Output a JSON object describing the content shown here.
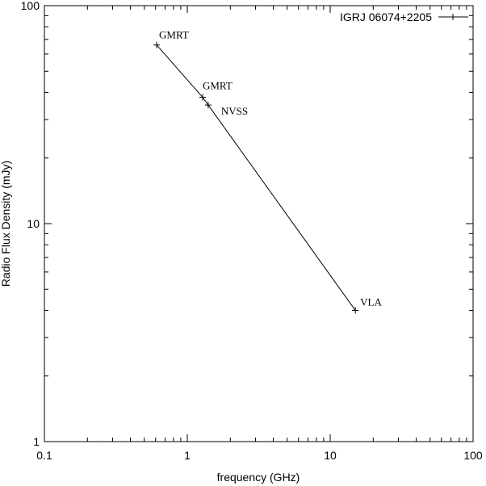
{
  "chart_data": {
    "type": "line",
    "title": "",
    "xlabel": "frequency (GHz)",
    "ylabel": "Radio Flux Density (mJy)",
    "xscale": "log",
    "yscale": "log",
    "xlim": [
      0.1,
      100
    ],
    "ylim": [
      1,
      100
    ],
    "x_ticks": [
      0.1,
      1,
      10,
      100
    ],
    "x_tick_labels": [
      "0.1",
      "1",
      "10",
      "100"
    ],
    "y_ticks": [
      1,
      10,
      100
    ],
    "y_tick_labels": [
      "1",
      "10",
      "100"
    ],
    "grid": false,
    "legend_position": "top-right",
    "series": [
      {
        "name": "IGRJ 06074+2205",
        "color": "#000000",
        "marker": "plus",
        "x": [
          0.61,
          1.28,
          1.4,
          15
        ],
        "y": [
          66,
          38,
          35,
          4.0
        ]
      }
    ],
    "annotations": [
      {
        "text": "GMRT",
        "x": 0.61,
        "y": 66
      },
      {
        "text": "GMRT",
        "x": 1.28,
        "y": 38
      },
      {
        "text": "NVSS",
        "x": 1.4,
        "y": 35
      },
      {
        "text": "VLA",
        "x": 15,
        "y": 4.0
      }
    ]
  }
}
